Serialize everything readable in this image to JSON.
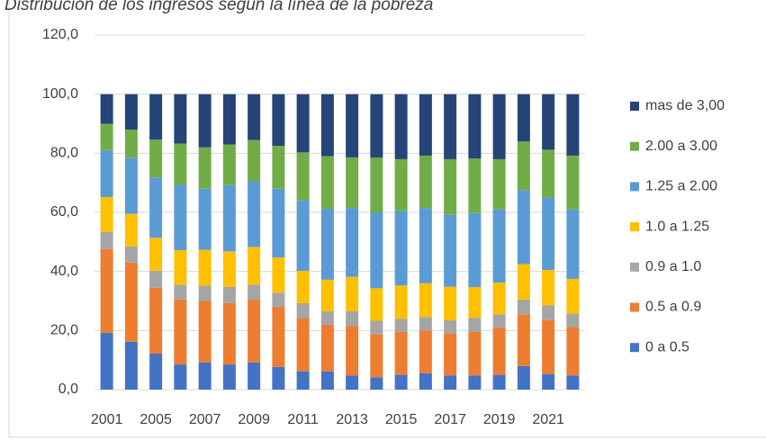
{
  "chart_data": {
    "type": "stacked_bar",
    "title": "Distribución de los ingresos según la línea de la pobreza",
    "categories": [
      "2001",
      null,
      "2005",
      null,
      "2007",
      null,
      "2009",
      null,
      "2011",
      null,
      "2013",
      null,
      "2015",
      null,
      "2017",
      null,
      "2019",
      null,
      "2021",
      null
    ],
    "series": [
      {
        "name": "0 a 0.5",
        "color": "#4472c4",
        "values": [
          19.2,
          16.2,
          12.2,
          8.5,
          9.2,
          8.5,
          9.2,
          7.7,
          6.2,
          6.2,
          4.8,
          4.2,
          5,
          5.5,
          4.8,
          4.8,
          5,
          8,
          5.3,
          4.8
        ]
      },
      {
        "name": "0.5 a 0.9",
        "color": "#ed7d31",
        "values": [
          28.4,
          26.8,
          22.3,
          22,
          20.8,
          20.8,
          21.1,
          20.3,
          18,
          15.8,
          16.7,
          14.6,
          14.5,
          14.5,
          14.2,
          14.7,
          16,
          17.5,
          18.2,
          16.4
        ]
      },
      {
        "name": "0.9 a 1.0",
        "color": "#a5a5a5",
        "values": [
          5.8,
          5.5,
          5.8,
          5,
          5.2,
          5.5,
          5.2,
          4.8,
          5.1,
          4.5,
          5,
          4.5,
          4.5,
          4.5,
          4.5,
          4.8,
          4.5,
          5,
          5,
          4.6
        ]
      },
      {
        "name": "1.0 a 1.25",
        "color": "#ffc000",
        "values": [
          11.8,
          11,
          11.1,
          11.7,
          12.1,
          12,
          12.8,
          11.9,
          10.9,
          10.7,
          11.7,
          11,
          11.3,
          11.5,
          11.3,
          10.4,
          10.7,
          12,
          12,
          11.7
        ]
      },
      {
        "name": "1.25 a 2.00",
        "color": "#5b9bd5",
        "values": [
          15.9,
          19,
          20.4,
          22.1,
          20.7,
          22.4,
          22.2,
          23.3,
          23.8,
          24,
          23.3,
          25.7,
          25.2,
          25.5,
          24.5,
          25.1,
          24.8,
          25,
          24.5,
          23.5
        ]
      },
      {
        "name": "2.00 a 3.00",
        "color": "#70ad47",
        "values": [
          8.9,
          9.5,
          12.8,
          14,
          14,
          13.8,
          14,
          14.5,
          16.3,
          17.8,
          17.1,
          18.5,
          17.5,
          17.7,
          18.7,
          18.4,
          17,
          16.5,
          16.2,
          18.2
        ]
      },
      {
        "name": "mas de 3,00",
        "color": "#264478",
        "values": [
          10,
          12,
          15.4,
          16.7,
          18,
          17,
          15.5,
          17.5,
          19.7,
          21,
          21.4,
          21.5,
          22,
          20.8,
          22,
          21.8,
          22,
          16,
          18.8,
          20.8
        ]
      }
    ],
    "ylim": [
      0,
      120
    ],
    "yticks": [
      {
        "value": 0,
        "label": "0,0"
      },
      {
        "value": 20,
        "label": "20,0"
      },
      {
        "value": 40,
        "label": "40,0"
      },
      {
        "value": 60,
        "label": "60,0"
      },
      {
        "value": 80,
        "label": "80,0"
      },
      {
        "value": 100,
        "label": "100,0"
      },
      {
        "value": 120,
        "label": "120,0"
      }
    ],
    "grid": true,
    "legend": "right"
  }
}
